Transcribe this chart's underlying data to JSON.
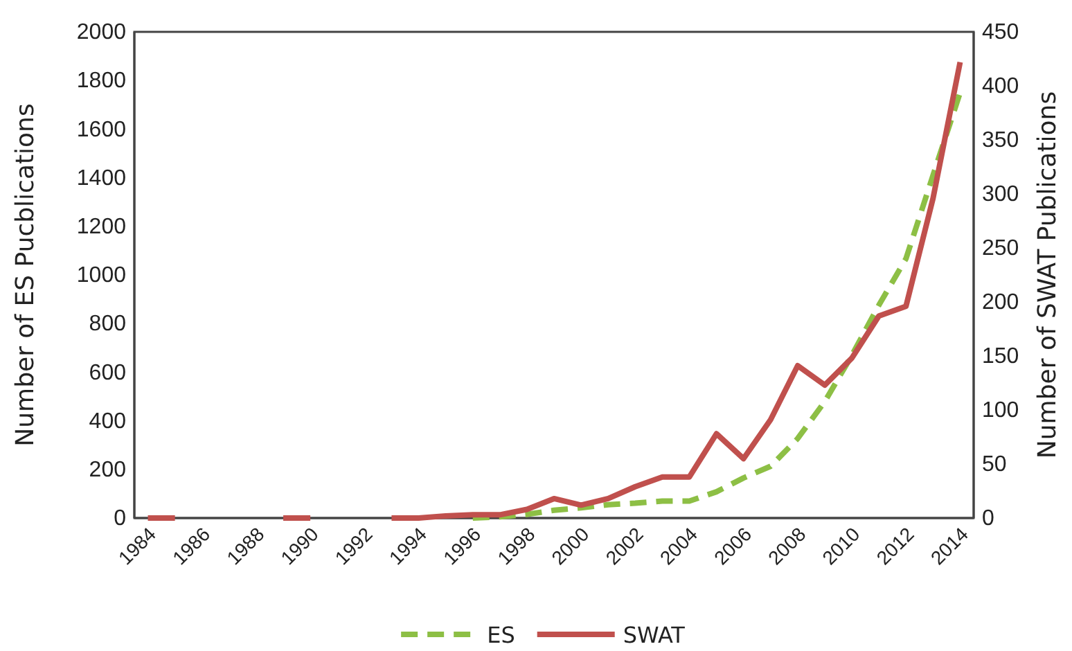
{
  "chart_data": {
    "type": "line",
    "ylabel": "Number of ES Pucblications",
    "y2label": "Number  of SWAT Publications",
    "xlim": [
      1983.5,
      2014.5
    ],
    "xticks": [
      1984,
      1986,
      1988,
      1990,
      1992,
      1994,
      1996,
      1998,
      2000,
      2002,
      2004,
      2006,
      2008,
      2010,
      2012,
      2014
    ],
    "ylim": [
      0,
      2000
    ],
    "yticks": [
      0,
      200,
      400,
      600,
      800,
      1000,
      1200,
      1400,
      1600,
      1800,
      2000
    ],
    "y2lim": [
      0,
      450
    ],
    "y2ticks": [
      0,
      50,
      100,
      150,
      200,
      250,
      300,
      350,
      400,
      450
    ],
    "legend": "bottom",
    "grid": false,
    "series": [
      {
        "name": "ES",
        "color": "#8dbf45",
        "line_style": "dashed",
        "x": [
          1996,
          1997,
          1998,
          1999,
          2000,
          2001,
          2002,
          2003,
          2004,
          2005,
          2006,
          2007,
          2008,
          2009,
          2010,
          2011,
          2012,
          2013,
          2014
        ],
        "values": [
          0,
          5,
          15,
          32,
          42,
          55,
          61,
          70,
          70,
          108,
          165,
          213,
          327,
          479,
          669,
          876,
          1067,
          1410,
          1750
        ]
      },
      {
        "name": "SWAT",
        "color": "#c0504d",
        "line_style": "solid",
        "axis": "y2",
        "x": [
          1984,
          1985,
          1986,
          1987,
          1988,
          1989,
          1990,
          1991,
          1992,
          1993,
          1994,
          1995,
          1996,
          1997,
          1998,
          1999,
          2000,
          2001,
          2002,
          2003,
          2004,
          2005,
          2006,
          2007,
          2008,
          2009,
          2010,
          2011,
          2012,
          2013,
          2014
        ],
        "values": [
          0,
          0,
          null,
          null,
          null,
          0,
          0,
          null,
          null,
          0,
          0,
          2,
          3,
          3,
          8,
          18,
          12,
          18,
          29,
          38,
          38,
          78,
          55,
          91,
          141,
          123,
          148,
          187,
          196,
          296,
          422
        ]
      }
    ]
  }
}
